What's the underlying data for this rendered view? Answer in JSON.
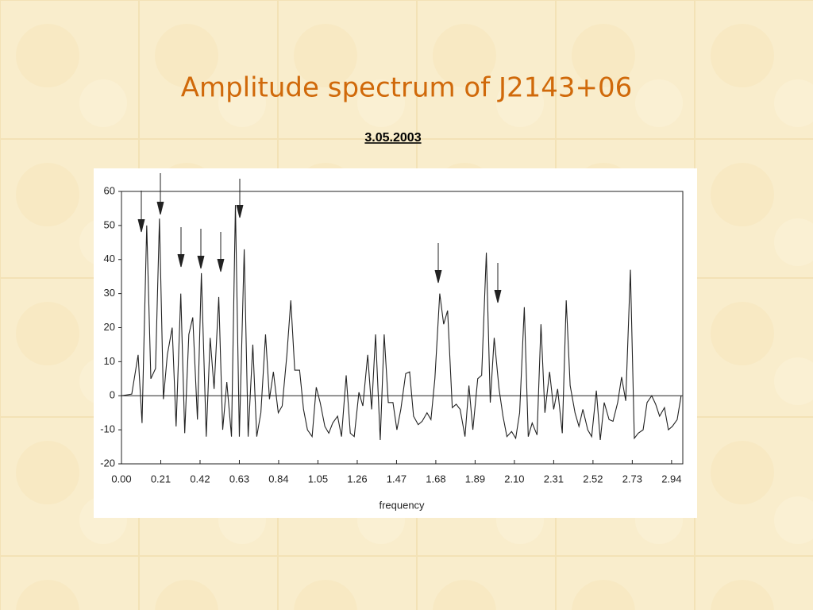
{
  "chart_data": {
    "type": "line",
    "title": "Amplitude spectrum of J2143+06",
    "subtitle": "3.05.2003",
    "x_label": "frequency",
    "color": "#222222",
    "xlim": [
      0,
      3.0
    ],
    "ylim": [
      -20,
      60
    ],
    "xticks": [
      {
        "value": 0,
        "label": "0.00"
      },
      0.21,
      0.42,
      0.63,
      0.84,
      1.05,
      1.26,
      1.47,
      1.68,
      1.89,
      {
        "value": 2.1,
        "label": "2.10"
      },
      2.31,
      2.52,
      2.73,
      2.94
    ],
    "yticks": [
      -20,
      -10,
      0,
      10,
      20,
      30,
      40,
      50,
      60
    ],
    "x": [
      0,
      0.055,
      0.089,
      0.11,
      0.135,
      0.157,
      0.182,
      0.203,
      0.224,
      0.245,
      0.271,
      0.292,
      0.317,
      0.338,
      0.36,
      0.381,
      0.406,
      0.427,
      0.453,
      0.474,
      0.495,
      0.52,
      0.541,
      0.563,
      0.588,
      0.609,
      0.63,
      0.656,
      0.677,
      0.702,
      0.723,
      0.745,
      0.77,
      0.791,
      0.812,
      0.838,
      0.859,
      0.884,
      0.905,
      0.926,
      0.952,
      0.973,
      0.994,
      1.019,
      1.041,
      1.062,
      1.087,
      1.108,
      1.129,
      1.155,
      1.176,
      1.201,
      1.223,
      1.244,
      1.269,
      1.29,
      1.316,
      1.337,
      1.358,
      1.383,
      1.404,
      1.426,
      1.451,
      1.472,
      1.493,
      1.519,
      1.54,
      1.561,
      1.586,
      1.607,
      1.633,
      1.654,
      1.675,
      1.701,
      1.722,
      1.743,
      1.768,
      1.789,
      1.81,
      1.836,
      1.857,
      1.878,
      1.904,
      1.925,
      1.95,
      1.971,
      1.992,
      2.018,
      2.039,
      2.06,
      2.085,
      2.107,
      2.128,
      2.153,
      2.174,
      2.195,
      2.221,
      2.242,
      2.263,
      2.288,
      2.31,
      2.331,
      2.356,
      2.377,
      2.398,
      2.424,
      2.445,
      2.466,
      2.492,
      2.513,
      2.538,
      2.559,
      2.58,
      2.606,
      2.627,
      2.652,
      2.673,
      2.695,
      2.72,
      2.741,
      2.762,
      2.788,
      2.809,
      2.834,
      2.855,
      2.876,
      2.902,
      2.923,
      2.944,
      2.97,
      2.991
    ],
    "values": [
      0,
      0.5,
      12,
      -8,
      50,
      5,
      8,
      52,
      -1,
      12,
      20,
      -9,
      30,
      -11,
      18,
      23,
      -7,
      36,
      -12,
      17,
      2,
      29,
      -10,
      4,
      -12,
      56,
      -12,
      43,
      -12,
      15,
      -12,
      -5,
      18,
      -1,
      7,
      -5,
      -3,
      12,
      28,
      7.5,
      7.5,
      -4,
      -10,
      -12,
      2.5,
      -2,
      -9,
      -11,
      -8,
      -6,
      -12,
      6,
      -11,
      -12,
      1,
      -3,
      12,
      -4,
      18,
      -13,
      18,
      -2,
      -2,
      -10,
      -4,
      6.5,
      7,
      -6,
      -8.5,
      -7.5,
      -5,
      -7,
      5,
      30,
      21,
      25,
      -3.5,
      -2.5,
      -4,
      -12,
      3,
      -10,
      5,
      6,
      42,
      -2,
      17,
      2,
      -6,
      -12,
      -10.5,
      -12.5,
      -5,
      26,
      -12,
      -8,
      -11.5,
      21,
      -5,
      7,
      -4,
      2,
      -11,
      28,
      3,
      -5,
      -9,
      -4,
      -10,
      -12,
      1.5,
      -13,
      -2,
      -7,
      -7.5,
      -2,
      5.5,
      -1.5,
      37,
      -12.5,
      -11,
      -10,
      -2,
      0,
      -2.5,
      -6,
      -3.5,
      -10,
      -9,
      -7,
      0
    ]
  }
}
